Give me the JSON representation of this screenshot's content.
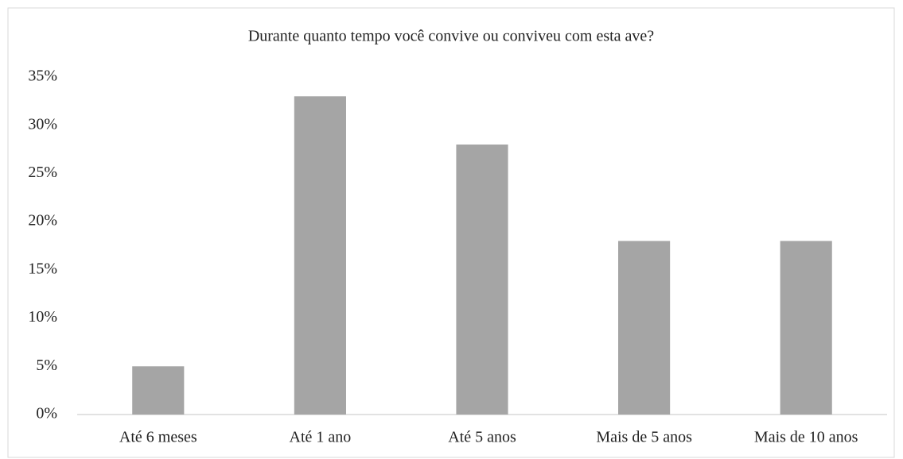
{
  "chart_data": {
    "type": "bar",
    "title": "Durante quanto tempo você convive ou conviveu com esta ave?",
    "categories": [
      "Até 6 meses",
      "Até 1 ano",
      "Até 5 anos",
      "Mais de 5 anos",
      "Mais de 10 anos"
    ],
    "values": [
      5,
      33,
      28,
      18,
      18
    ],
    "color": "#a5a5a5",
    "ylim": [
      0,
      35
    ],
    "yticks": [
      {
        "value": 0,
        "label": "0%"
      },
      {
        "value": 5,
        "label": "5%"
      },
      {
        "value": 10,
        "label": "10%"
      },
      {
        "value": 15,
        "label": "15%"
      },
      {
        "value": 20,
        "label": "20%"
      },
      {
        "value": 25,
        "label": "25%"
      },
      {
        "value": 30,
        "label": "30%"
      },
      {
        "value": 35,
        "label": "35%"
      }
    ],
    "grid": false
  }
}
